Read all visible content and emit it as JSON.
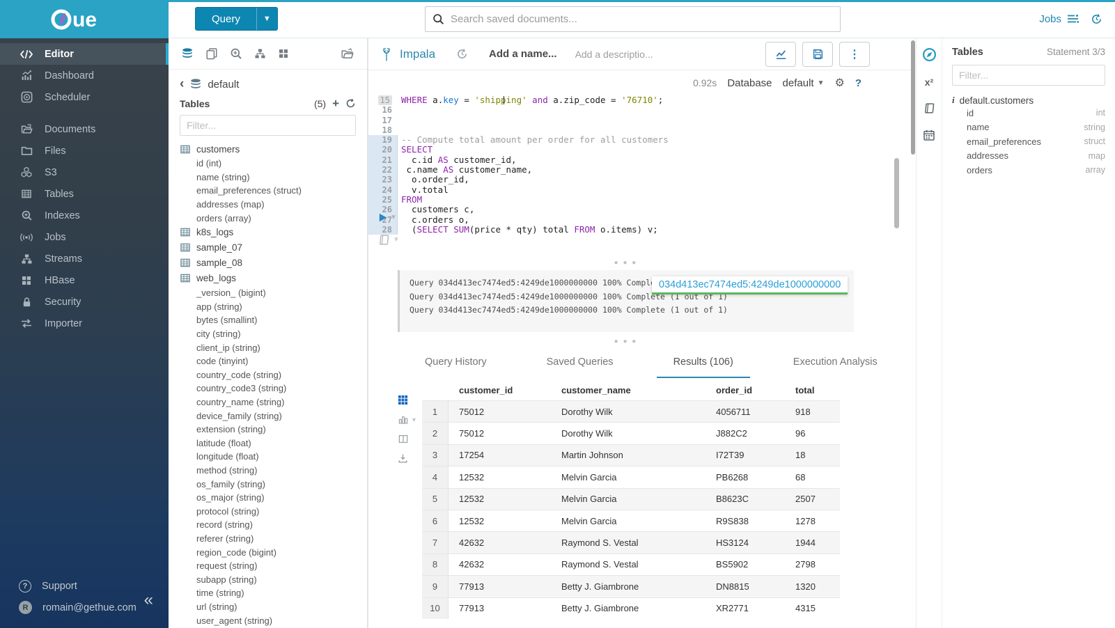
{
  "colors": {
    "brand": "#2aa3c5",
    "accent_blue": "#338bb8",
    "keyword": "#8e24aa",
    "string_literal": "#7f8400",
    "tooltip_link": "#2a9fd8",
    "tooltip_underline": "#5cb85c"
  },
  "brand": {
    "logo_suffix": "ue"
  },
  "topbar": {
    "query_button": "Query",
    "search_placeholder": "Search saved documents...",
    "jobs_label": "Jobs"
  },
  "sidebar": {
    "items": [
      {
        "icon": "code",
        "label": "Editor",
        "active": true
      },
      {
        "icon": "dashboard",
        "label": "Dashboard"
      },
      {
        "icon": "scheduler",
        "label": "Scheduler",
        "group_end": true
      },
      {
        "icon": "documents",
        "label": "Documents"
      },
      {
        "icon": "folder",
        "label": "Files"
      },
      {
        "icon": "s3",
        "label": "S3"
      },
      {
        "icon": "table",
        "label": "Tables"
      },
      {
        "icon": "indexes",
        "label": "Indexes"
      },
      {
        "icon": "jobs",
        "label": "Jobs"
      },
      {
        "icon": "sitemap",
        "label": "Streams"
      },
      {
        "icon": "hbase",
        "label": "HBase"
      },
      {
        "icon": "lock",
        "label": "Security"
      },
      {
        "icon": "importer",
        "label": "Importer"
      }
    ],
    "support_label": "Support",
    "user_email": "romain@gethue.com",
    "user_initial": "R"
  },
  "left_assist": {
    "database": "default",
    "tables_title": "Tables",
    "tables_count": "(5)",
    "filter_placeholder": "Filter...",
    "tree": [
      {
        "name": "customers",
        "columns": [
          "id (int)",
          "name (string)",
          "email_preferences (struct)",
          "addresses (map)",
          "orders (array)"
        ]
      },
      {
        "name": "k8s_logs",
        "columns": []
      },
      {
        "name": "sample_07",
        "columns": []
      },
      {
        "name": "sample_08",
        "columns": []
      },
      {
        "name": "web_logs",
        "columns": [
          "_version_ (bigint)",
          "app (string)",
          "bytes (smallint)",
          "city (string)",
          "client_ip (string)",
          "code (tinyint)",
          "country_code (string)",
          "country_code3 (string)",
          "country_name (string)",
          "device_family (string)",
          "extension (string)",
          "latitude (float)",
          "longitude (float)",
          "method (string)",
          "os_family (string)",
          "os_major (string)",
          "protocol (string)",
          "record (string)",
          "referer (string)",
          "region_code (bigint)",
          "request (string)",
          "subapp (string)",
          "time (string)",
          "url (string)",
          "user_agent (string)"
        ]
      }
    ]
  },
  "editor": {
    "engine": "Impala",
    "name_placeholder": "Add a name...",
    "description_placeholder": "Add a descriptio...",
    "duration": "0.92s",
    "database_label": "Database",
    "database_value": "default",
    "code_lines": [
      {
        "n": "15",
        "hl": "current",
        "segs": [
          [
            "k",
            "WHERE"
          ],
          [
            "p",
            " a."
          ],
          [
            "b",
            "key"
          ],
          [
            "p",
            " = "
          ],
          [
            "s",
            "'shipping'"
          ],
          [
            "p",
            " "
          ],
          [
            "k",
            "and"
          ],
          [
            "p",
            " a.zip_code = "
          ],
          [
            "s",
            "'76710'"
          ],
          [
            "p",
            ";"
          ]
        ]
      },
      {
        "n": "16",
        "segs": []
      },
      {
        "n": "17",
        "segs": []
      },
      {
        "n": "18",
        "segs": []
      },
      {
        "n": "19",
        "hl": "stmt",
        "segs": [
          [
            "c",
            "-- Compute total amount per order for all customers"
          ]
        ]
      },
      {
        "n": "20",
        "hl": "stmt",
        "segs": [
          [
            "k",
            "SELECT"
          ]
        ]
      },
      {
        "n": "21",
        "hl": "stmt",
        "segs": [
          [
            "p",
            "  c.id "
          ],
          [
            "k",
            "AS"
          ],
          [
            "p",
            " customer_id,"
          ]
        ]
      },
      {
        "n": "22",
        "hl": "stmt",
        "segs": [
          [
            "p",
            " c.name "
          ],
          [
            "k",
            "AS"
          ],
          [
            "p",
            " customer_name,"
          ]
        ]
      },
      {
        "n": "23",
        "hl": "stmt",
        "segs": [
          [
            "p",
            "  o.order_id,"
          ]
        ]
      },
      {
        "n": "24",
        "hl": "stmt",
        "segs": [
          [
            "p",
            "  v.total"
          ]
        ]
      },
      {
        "n": "25",
        "hl": "stmt",
        "segs": [
          [
            "k",
            "FROM"
          ]
        ]
      },
      {
        "n": "26",
        "hl": "stmt",
        "segs": [
          [
            "p",
            "  customers c,"
          ]
        ]
      },
      {
        "n": "27",
        "hl": "stmt",
        "segs": [
          [
            "p",
            "  c.orders o,"
          ]
        ]
      },
      {
        "n": "28",
        "hl": "stmt",
        "segs": [
          [
            "p",
            "  ("
          ],
          [
            "k",
            "SELECT"
          ],
          [
            "p",
            " "
          ],
          [
            "k",
            "SUM"
          ],
          [
            "p",
            "(price * qty) total "
          ],
          [
            "k",
            "FROM"
          ],
          [
            "p",
            " o.items) v;"
          ]
        ]
      }
    ]
  },
  "logs": {
    "lines": [
      "Query 034d413ec7474ed5:4249de1000000000 100% Complete (1 out of 1)",
      "Query 034d413ec7474ed5:4249de1000000000 100% Complete (1 out of 1)",
      "Query 034d413ec7474ed5:4249de1000000000 100% Complete (1 out of 1)"
    ],
    "tooltip": "034d413ec7474ed5:4249de1000000000"
  },
  "result_tabs": [
    {
      "label": "Query History"
    },
    {
      "label": "Saved Queries"
    },
    {
      "label": "Results (106)",
      "active": true
    },
    {
      "label": "Execution Analysis"
    }
  ],
  "results": {
    "headers": [
      "customer_id",
      "customer_name",
      "order_id",
      "total"
    ],
    "rows": [
      [
        "1",
        "75012",
        "Dorothy Wilk",
        "4056711",
        "918"
      ],
      [
        "2",
        "75012",
        "Dorothy Wilk",
        "J882C2",
        "96"
      ],
      [
        "3",
        "17254",
        "Martin Johnson",
        "I72T39",
        "18"
      ],
      [
        "4",
        "12532",
        "Melvin Garcia",
        "PB6268",
        "68"
      ],
      [
        "5",
        "12532",
        "Melvin Garcia",
        "B8623C",
        "2507"
      ],
      [
        "6",
        "12532",
        "Melvin Garcia",
        "R9S838",
        "1278"
      ],
      [
        "7",
        "42632",
        "Raymond S. Vestal",
        "HS3124",
        "1944"
      ],
      [
        "8",
        "42632",
        "Raymond S. Vestal",
        "BS5902",
        "2798"
      ],
      [
        "9",
        "77913",
        "Betty J. Giambrone",
        "DN8815",
        "1320"
      ],
      [
        "10",
        "77913",
        "Betty J. Giambrone",
        "XR2771",
        "4315"
      ]
    ]
  },
  "right_assist": {
    "title": "Tables",
    "statement": "Statement 3/3",
    "filter_placeholder": "Filter...",
    "table_name": "default.customers",
    "columns": [
      {
        "name": "id",
        "type": "int"
      },
      {
        "name": "name",
        "type": "string"
      },
      {
        "name": "email_preferences",
        "type": "struct"
      },
      {
        "name": "addresses",
        "type": "map"
      },
      {
        "name": "orders",
        "type": "array"
      }
    ]
  }
}
